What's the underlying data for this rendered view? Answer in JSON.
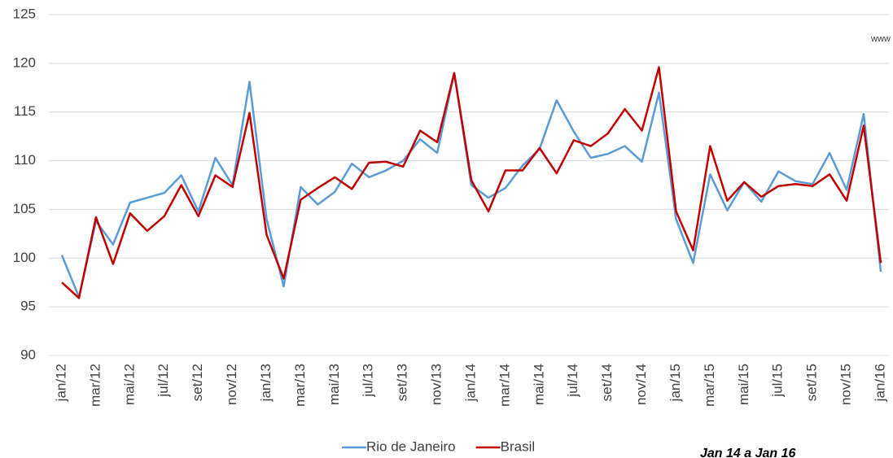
{
  "chart_data": {
    "type": "line",
    "categories": [
      "jan/12",
      null,
      "mar/12",
      null,
      "mai/12",
      null,
      "jul/12",
      null,
      "set/12",
      null,
      "nov/12",
      null,
      "jan/13",
      null,
      "mar/13",
      null,
      "mai/13",
      null,
      "jul/13",
      null,
      "set/13",
      null,
      "nov/13",
      null,
      "jan/14",
      null,
      "mar/14",
      null,
      "mai/14",
      null,
      "jul/14",
      null,
      "set/14",
      null,
      "nov/14",
      null,
      "jan/15",
      null,
      "mar/15",
      null,
      "mai/15",
      null,
      "jul/15",
      null,
      "set/15",
      null,
      "nov/15",
      null,
      "jan/16"
    ],
    "series": [
      {
        "name": "Rio de Janeiro",
        "color": "#5b9bd5",
        "values": [
          100.3,
          96.0,
          103.8,
          101.4,
          105.7,
          106.2,
          106.7,
          108.5,
          104.8,
          110.3,
          107.5,
          118.1,
          104.0,
          97.1,
          107.3,
          105.5,
          106.8,
          109.7,
          108.3,
          109.0,
          110.0,
          112.2,
          110.8,
          119.0,
          107.5,
          106.2,
          107.2,
          109.5,
          111.2,
          116.2,
          113.0,
          110.3,
          110.7,
          111.5,
          109.9,
          117.0,
          104.0,
          99.5,
          108.6,
          104.9,
          107.8,
          105.8,
          108.9,
          107.9,
          107.6,
          110.8,
          107.0,
          114.8,
          98.6
        ]
      },
      {
        "name": "Brasil",
        "color": "#c00000",
        "values": [
          97.5,
          95.9,
          104.2,
          99.4,
          104.6,
          102.8,
          104.3,
          107.5,
          104.3,
          108.5,
          107.3,
          114.9,
          102.4,
          97.9,
          106.0,
          107.2,
          108.3,
          107.1,
          109.8,
          109.9,
          109.4,
          113.1,
          111.9,
          119.0,
          108.0,
          104.8,
          109.0,
          109.0,
          111.3,
          108.7,
          112.1,
          111.5,
          112.8,
          115.3,
          113.1,
          119.6,
          104.8,
          100.8,
          111.5,
          105.9,
          107.8,
          106.3,
          107.4,
          107.6,
          107.4,
          108.6,
          105.9,
          113.6,
          99.5
        ]
      }
    ],
    "ylim": [
      90,
      125
    ],
    "yticks": [
      90,
      95,
      100,
      105,
      110,
      115,
      120,
      125
    ],
    "grid": true,
    "legend": "bottom",
    "annotations": [
      "www",
      "Jan 14 a Jan 16"
    ]
  }
}
